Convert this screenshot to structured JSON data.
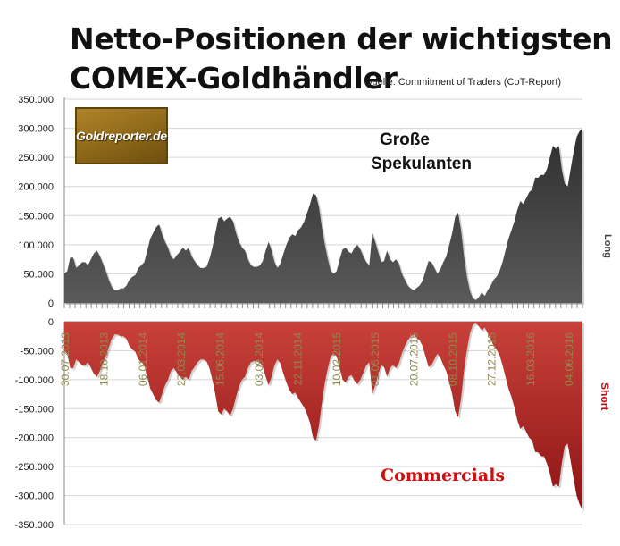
{
  "page": {
    "title_line1": "Netto-Positionen der wichtigsten",
    "title_line2": "COMEX-Goldhändler",
    "source": "Quelle: Commitment of Traders (CoT-Report)",
    "logo_text": "Goldreporter.de"
  },
  "chart_data": [
    {
      "type": "area",
      "name": "Große Spekulanten",
      "label_line1": "Große",
      "label_line2": "Spekulanten",
      "side_label": "Long",
      "color": "#3d3d3d",
      "ylim": [
        0,
        350000
      ],
      "yticks": [
        "350.000",
        "300.000",
        "250.000",
        "200.000",
        "150.000",
        "100.000",
        "50.000",
        "0"
      ],
      "values": [
        50000,
        55000,
        78000,
        78000,
        60000,
        65000,
        70000,
        70000,
        65000,
        75000,
        85000,
        90000,
        80000,
        68000,
        55000,
        40000,
        28000,
        22000,
        22000,
        25000,
        25000,
        30000,
        40000,
        45000,
        48000,
        60000,
        65000,
        70000,
        90000,
        110000,
        120000,
        130000,
        135000,
        118000,
        105000,
        95000,
        80000,
        75000,
        82000,
        88000,
        95000,
        90000,
        95000,
        80000,
        72000,
        65000,
        60000,
        60000,
        62000,
        75000,
        95000,
        120000,
        145000,
        148000,
        140000,
        145000,
        148000,
        140000,
        120000,
        105000,
        95000,
        90000,
        75000,
        65000,
        62000,
        62000,
        64000,
        72000,
        90000,
        105000,
        90000,
        70000,
        60000,
        68000,
        85000,
        100000,
        112000,
        118000,
        115000,
        125000,
        130000,
        140000,
        155000,
        170000,
        188000,
        185000,
        165000,
        130000,
        100000,
        75000,
        55000,
        50000,
        55000,
        75000,
        92000,
        95000,
        88000,
        85000,
        95000,
        100000,
        92000,
        80000,
        70000,
        65000,
        120000,
        105000,
        88000,
        70000,
        72000,
        90000,
        75000,
        70000,
        75000,
        68000,
        50000,
        40000,
        30000,
        25000,
        22000,
        26000,
        30000,
        38000,
        55000,
        72000,
        70000,
        60000,
        50000,
        58000,
        70000,
        80000,
        100000,
        120000,
        148000,
        155000,
        125000,
        80000,
        45000,
        20000,
        8000,
        5000,
        10000,
        18000,
        12000,
        22000,
        30000,
        40000,
        45000,
        55000,
        70000,
        90000,
        110000,
        125000,
        140000,
        160000,
        175000,
        170000,
        180000,
        190000,
        195000,
        215000,
        215000,
        220000,
        220000,
        230000,
        250000,
        270000,
        265000,
        270000,
        230000,
        205000,
        200000,
        230000,
        260000,
        285000,
        295000,
        300000
      ]
    },
    {
      "type": "area",
      "name": "Commercials",
      "side_label": "Short",
      "color": "#b21f1f",
      "ylim": [
        -350000,
        0
      ],
      "yticks": [
        "0",
        "-50.000",
        "-100.000",
        "-150.000",
        "-200.000",
        "-250.000",
        "-300.000",
        "-350.000"
      ],
      "xticks": [
        "30.07.2013",
        "18.10.2013",
        "06.01.2014",
        "27.03.2014",
        "15.06.2014",
        "03.09.2014",
        "22.11.2014",
        "10.02.2015",
        "01.05.2015",
        "20.07.2015",
        "08.10.2015",
        "27.12.2015",
        "16.03.2016",
        "04.06.2016"
      ],
      "values": [
        -50000,
        -55000,
        -80000,
        -80000,
        -65000,
        -70000,
        -75000,
        -75000,
        -70000,
        -80000,
        -90000,
        -95000,
        -85000,
        -72000,
        -60000,
        -45000,
        -30000,
        -22000,
        -22000,
        -25000,
        -25000,
        -30000,
        -42000,
        -48000,
        -52000,
        -65000,
        -70000,
        -75000,
        -95000,
        -115000,
        -125000,
        -135000,
        -140000,
        -125000,
        -110000,
        -100000,
        -85000,
        -80000,
        -88000,
        -95000,
        -100000,
        -95000,
        -100000,
        -85000,
        -78000,
        -70000,
        -65000,
        -65000,
        -68000,
        -80000,
        -100000,
        -125000,
        -155000,
        -160000,
        -150000,
        -155000,
        -162000,
        -150000,
        -130000,
        -112000,
        -100000,
        -95000,
        -80000,
        -70000,
        -68000,
        -68000,
        -70000,
        -78000,
        -95000,
        -110000,
        -95000,
        -75000,
        -65000,
        -72000,
        -90000,
        -105000,
        -118000,
        -125000,
        -122000,
        -132000,
        -140000,
        -148000,
        -160000,
        -175000,
        -200000,
        -205000,
        -180000,
        -140000,
        -105000,
        -80000,
        -60000,
        -55000,
        -60000,
        -80000,
        -100000,
        -105000,
        -95000,
        -92000,
        -102000,
        -108000,
        -100000,
        -88000,
        -75000,
        -70000,
        -125000,
        -110000,
        -92000,
        -75000,
        -78000,
        -95000,
        -80000,
        -75000,
        -80000,
        -72000,
        -55000,
        -42000,
        -32000,
        -25000,
        -22000,
        -28000,
        -32000,
        -42000,
        -60000,
        -78000,
        -75000,
        -65000,
        -55000,
        -62000,
        -75000,
        -85000,
        -105000,
        -125000,
        -155000,
        -165000,
        -132000,
        -85000,
        -48000,
        -20000,
        -5000,
        -3000,
        -8000,
        -15000,
        -10000,
        -20000,
        -30000,
        -42000,
        -48000,
        -58000,
        -75000,
        -95000,
        -115000,
        -130000,
        -148000,
        -170000,
        -185000,
        -180000,
        -190000,
        -200000,
        -205000,
        -225000,
        -225000,
        -232000,
        -232000,
        -245000,
        -262000,
        -285000,
        -280000,
        -285000,
        -245000,
        -215000,
        -210000,
        -240000,
        -272000,
        -300000,
        -315000,
        -325000
      ]
    }
  ]
}
